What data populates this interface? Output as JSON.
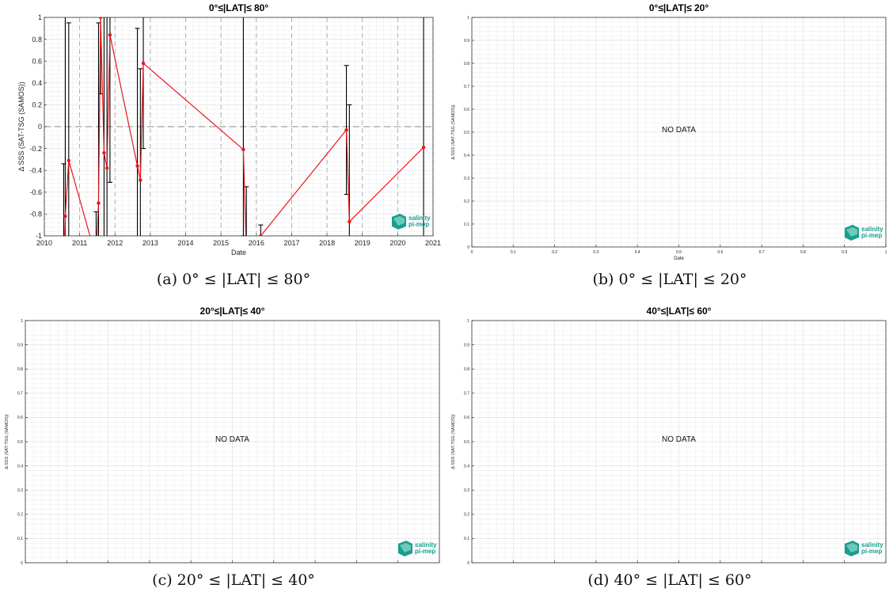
{
  "panels": [
    {
      "id": "a",
      "caption": "(a) 0° ≤ |LAT| ≤ 80°",
      "chart_data": {
        "type": "line",
        "title": "0°≤|LAT|≤ 80°",
        "xlabel": "Date",
        "ylabel": "Δ SSS (SAT-TSG (SAMOS))",
        "x_tick_labels": [
          "2010",
          "2011",
          "2012",
          "2013",
          "2014",
          "2015",
          "2016",
          "2017",
          "2018",
          "2019",
          "2020",
          "2021"
        ],
        "y_tick_labels": [
          "-1",
          "-0.8",
          "-0.6",
          "-0.4",
          "-0.2",
          "0",
          "0.2",
          "0.4",
          "0.6",
          "0.8",
          "1"
        ],
        "xlim": [
          "2010-01-01",
          "2021-01-01"
        ],
        "ylim": [
          -1,
          1
        ],
        "grid": true,
        "zero_line": true,
        "line_color": "#e8151b",
        "errorbar_color": "#000000",
        "points": [
          {
            "date": "2010-07-20",
            "y": -1.3,
            "err_low": -1.6,
            "err_high": -0.34
          },
          {
            "date": "2010-08-05",
            "y": -0.82,
            "err_low": -1.5,
            "err_high": 1.4
          },
          {
            "date": "2010-09-10",
            "y": -0.31,
            "err_low": -1.3,
            "err_high": 0.95
          },
          {
            "date": "2011-06-20",
            "y": -1.2,
            "err_low": -1.6,
            "err_high": -0.78
          },
          {
            "date": "2011-07-15",
            "y": -0.7,
            "err_low": -1.8,
            "err_high": 0.95
          },
          {
            "date": "2011-08-05",
            "y": 1.0,
            "err_low": 0.3,
            "err_high": 1.6
          },
          {
            "date": "2011-09-10",
            "y": -0.24,
            "err_low": -1.3,
            "err_high": 1.4
          },
          {
            "date": "2011-10-10",
            "y": -0.38,
            "err_low": -1.2,
            "err_high": 1.3
          },
          {
            "date": "2011-11-10",
            "y": 0.84,
            "err_low": -0.51,
            "err_high": 1.5
          },
          {
            "date": "2012-08-20",
            "y": -0.36,
            "err_low": -1.4,
            "err_high": 0.9
          },
          {
            "date": "2012-09-20",
            "y": -0.49,
            "err_low": -1.3,
            "err_high": 0.53
          },
          {
            "date": "2012-10-20",
            "y": 0.58,
            "err_low": -0.2,
            "err_high": 1.4
          },
          {
            "date": "2015-08-20",
            "y": -0.21,
            "err_low": -1.0,
            "err_high": 1.5
          },
          {
            "date": "2015-09-20",
            "y": -1.2,
            "err_low": -1.6,
            "err_high": -0.55
          },
          {
            "date": "2016-02-15",
            "y": -1.0,
            "err_low": -1.1,
            "err_high": -0.9
          },
          {
            "date": "2018-07-20",
            "y": -0.03,
            "err_low": -0.62,
            "err_high": 0.56
          },
          {
            "date": "2018-08-20",
            "y": -0.87,
            "err_low": -1.5,
            "err_high": 0.2
          },
          {
            "date": "2020-09-25",
            "y": -0.19,
            "err_low": -1.5,
            "err_high": 1.5
          }
        ]
      }
    },
    {
      "id": "b",
      "caption": "(b) 0° ≤ |LAT| ≤ 20°",
      "chart_data": {
        "type": "line",
        "title": "0°≤|LAT|≤ 20°",
        "xlabel": "Date",
        "ylabel": "Δ SSS (SAT-TSG (SAMOS))",
        "x_tick_labels": [
          "0",
          "0.1",
          "0.2",
          "0.3",
          "0.4",
          "0.5",
          "0.6",
          "0.7",
          "0.8",
          "0.9",
          "1"
        ],
        "y_tick_labels": [
          "0",
          "0.1",
          "0.2",
          "0.3",
          "0.4",
          "0.5",
          "0.6",
          "0.7",
          "0.8",
          "0.9",
          "1"
        ],
        "xlim": [
          0,
          1
        ],
        "ylim": [
          0,
          1
        ],
        "grid": true,
        "message": "NO DATA",
        "points": []
      }
    },
    {
      "id": "c",
      "caption": "(c) 20° ≤ |LAT| ≤ 40°",
      "chart_data": {
        "type": "line",
        "title": "20°≤|LAT|≤ 40°",
        "xlabel": "Date",
        "ylabel": "Δ SSS (SAT-TSG (SAMOS))",
        "x_tick_labels": [
          "0",
          "0.1",
          "0.2",
          "0.3",
          "0.4",
          "0.5",
          "0.6",
          "0.7",
          "0.8",
          "0.9",
          "1"
        ],
        "y_tick_labels": [
          "0",
          "0.1",
          "0.2",
          "0.3",
          "0.4",
          "0.5",
          "0.6",
          "0.7",
          "0.8",
          "0.9",
          "1"
        ],
        "xlim": [
          0,
          1
        ],
        "ylim": [
          0,
          1
        ],
        "grid": true,
        "message": "NO DATA",
        "points": []
      }
    },
    {
      "id": "d",
      "caption": "(d) 40° ≤ |LAT| ≤ 60°",
      "chart_data": {
        "type": "line",
        "title": "40°≤|LAT|≤ 60°",
        "xlabel": "Date",
        "ylabel": "Δ SSS (SAT-TSG (SAMOS))",
        "x_tick_labels": [
          "0",
          "0.1",
          "0.2",
          "0.3",
          "0.4",
          "0.5",
          "0.6",
          "0.7",
          "0.8",
          "0.9",
          "1"
        ],
        "y_tick_labels": [
          "0",
          "0.1",
          "0.2",
          "0.3",
          "0.4",
          "0.5",
          "0.6",
          "0.7",
          "0.8",
          "0.9",
          "1"
        ],
        "xlim": [
          0,
          1
        ],
        "ylim": [
          0,
          1
        ],
        "grid": true,
        "message": "NO DATA",
        "points": []
      }
    }
  ],
  "logo": {
    "line1": "salinity",
    "line2": "pi-mep",
    "color": "#1a9e8e"
  }
}
